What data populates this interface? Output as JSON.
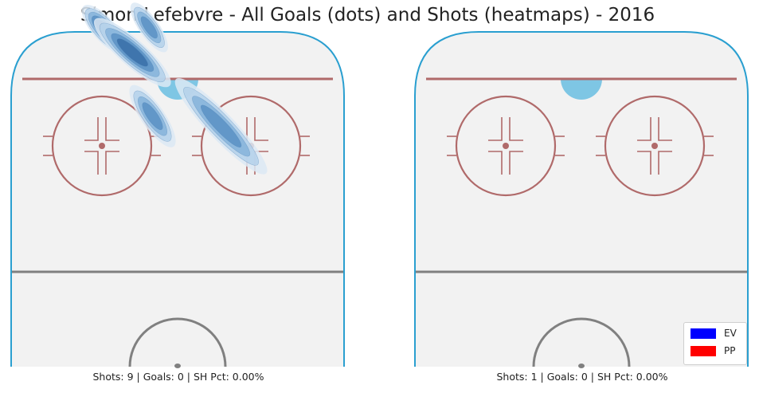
{
  "colors": {
    "rink_surface": "#f2f2f2",
    "boards": "#2a9fd0",
    "red_line": "#b06a6a",
    "center_line": "#808080",
    "crease": "#7ec6e4",
    "heat": [
      "#dce9f5",
      "#b4d1ea",
      "#85b3da",
      "#5a91c4",
      "#3a6fa8"
    ]
  },
  "chart_data": {
    "type": "heatmap",
    "title": "Simon Lefebvre - All Goals (dots) and Shots (heatmaps) - 2016",
    "units": "rink feet: x = distance from rink center line toward goal, y = lateral offset (left negative)",
    "panels": [
      {
        "name": "even-strength",
        "caption": "Shots: 9 | Goals: 0 | SH Pct: 0.00%",
        "goals": [],
        "shot_density": [
          {
            "points": [
              [
                77,
                -26
              ],
              [
                68,
                -18
              ]
            ],
            "width": 3.5,
            "level": 5
          },
          {
            "points": [
              [
                78,
                -12
              ],
              [
                68,
                -5
              ]
            ],
            "width": 3.0,
            "level": 4
          },
          {
            "points": [
              [
                73,
                -22
              ],
              [
                58,
                -5
              ]
            ],
            "width": 4.0,
            "level": 5
          },
          {
            "points": [
              [
                53,
                -12
              ],
              [
                40,
                -3
              ]
            ],
            "width": 3.5,
            "level": 4
          },
          {
            "points": [
              [
                55,
                2
              ],
              [
                32,
                24
              ]
            ],
            "width": 4.0,
            "level": 4
          }
        ]
      },
      {
        "name": "power-play",
        "caption": "Shots: 1 | Goals: 0 | SH Pct: 0.00%",
        "goals": [],
        "shot_density": []
      }
    ],
    "legend": [
      {
        "label": "EV",
        "color": "#0000ff"
      },
      {
        "label": "PP",
        "color": "#ff0000"
      }
    ],
    "legend_position": "bottom-right"
  }
}
